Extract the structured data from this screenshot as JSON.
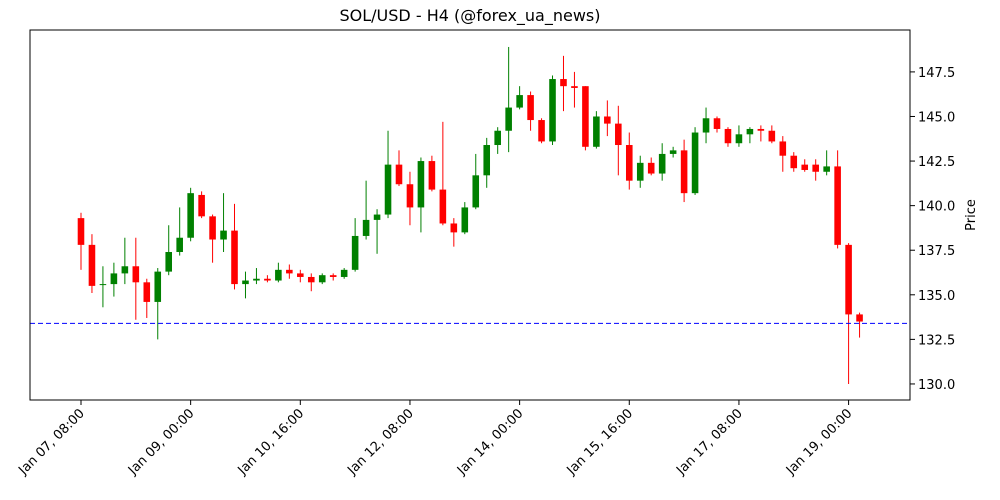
{
  "chart_data": {
    "type": "candlestick",
    "title": "SOL/USD - H4 (@forex_ua_news)",
    "y_label": "Price",
    "x": [
      "Jan 07, 08:00",
      "Jan 07, 12:00",
      "Jan 07, 16:00",
      "Jan 07, 20:00",
      "Jan 08, 00:00",
      "Jan 08, 04:00",
      "Jan 08, 08:00",
      "Jan 08, 12:00",
      "Jan 08, 16:00",
      "Jan 08, 20:00",
      "Jan 09, 00:00",
      "Jan 09, 04:00",
      "Jan 09, 08:00",
      "Jan 09, 12:00",
      "Jan 09, 16:00",
      "Jan 09, 20:00",
      "Jan 10, 00:00",
      "Jan 10, 04:00",
      "Jan 10, 08:00",
      "Jan 10, 12:00",
      "Jan 10, 16:00",
      "Jan 10, 20:00",
      "Jan 11, 00:00",
      "Jan 11, 04:00",
      "Jan 11, 08:00",
      "Jan 11, 12:00",
      "Jan 11, 16:00",
      "Jan 11, 20:00",
      "Jan 12, 00:00",
      "Jan 12, 04:00",
      "Jan 12, 08:00",
      "Jan 12, 12:00",
      "Jan 12, 16:00",
      "Jan 12, 20:00",
      "Jan 13, 00:00",
      "Jan 13, 04:00",
      "Jan 13, 08:00",
      "Jan 13, 12:00",
      "Jan 13, 16:00",
      "Jan 13, 20:00",
      "Jan 14, 00:00",
      "Jan 14, 04:00",
      "Jan 14, 08:00",
      "Jan 14, 12:00",
      "Jan 14, 16:00",
      "Jan 14, 20:00",
      "Jan 15, 00:00",
      "Jan 15, 04:00",
      "Jan 15, 08:00",
      "Jan 15, 12:00",
      "Jan 15, 16:00",
      "Jan 15, 20:00",
      "Jan 16, 00:00",
      "Jan 16, 04:00",
      "Jan 16, 08:00",
      "Jan 16, 12:00",
      "Jan 16, 16:00",
      "Jan 16, 20:00",
      "Jan 17, 00:00",
      "Jan 17, 04:00",
      "Jan 17, 08:00",
      "Jan 17, 12:00",
      "Jan 17, 16:00",
      "Jan 17, 20:00",
      "Jan 18, 00:00",
      "Jan 18, 04:00",
      "Jan 18, 08:00",
      "Jan 18, 12:00",
      "Jan 18, 16:00",
      "Jan 18, 20:00",
      "Jan 19, 00:00",
      "Jan 19, 04:00"
    ],
    "open": [
      139.3,
      137.8,
      135.6,
      135.6,
      136.2,
      136.6,
      135.7,
      134.6,
      136.3,
      137.4,
      138.2,
      140.6,
      139.4,
      138.1,
      138.6,
      135.6,
      135.8,
      135.9,
      135.8,
      136.4,
      136.2,
      136.0,
      135.7,
      136.1,
      136.0,
      136.4,
      138.3,
      139.2,
      139.5,
      142.3,
      141.2,
      139.9,
      142.5,
      140.9,
      139.0,
      138.5,
      139.9,
      141.7,
      143.4,
      144.2,
      145.5,
      146.2,
      144.8,
      143.6,
      147.1,
      146.7,
      146.7,
      143.3,
      145.0,
      144.6,
      143.4,
      141.4,
      142.4,
      141.8,
      142.9,
      143.1,
      140.7,
      144.1,
      144.9,
      144.3,
      143.5,
      144.0,
      144.3,
      144.2,
      143.6,
      142.8,
      142.3,
      142.3,
      141.9,
      142.2,
      137.8,
      133.9
    ],
    "high": [
      139.6,
      138.4,
      136.6,
      136.8,
      138.2,
      138.2,
      135.9,
      136.5,
      138.9,
      139.9,
      141.0,
      140.8,
      139.5,
      140.7,
      140.1,
      136.3,
      136.5,
      136.1,
      136.8,
      136.7,
      136.4,
      136.2,
      136.2,
      136.2,
      136.5,
      139.3,
      141.4,
      139.8,
      144.2,
      143.1,
      141.9,
      142.7,
      142.8,
      144.7,
      139.3,
      140.2,
      142.9,
      143.8,
      144.4,
      148.9,
      146.7,
      146.4,
      144.9,
      147.3,
      148.4,
      147.5,
      146.7,
      145.3,
      145.9,
      145.6,
      144.1,
      142.8,
      142.7,
      143.5,
      143.3,
      143.7,
      144.4,
      145.5,
      145.0,
      144.4,
      144.5,
      144.4,
      144.5,
      144.5,
      143.9,
      143.0,
      142.6,
      142.6,
      143.1,
      143.1,
      137.9,
      134.0
    ],
    "low": [
      136.4,
      135.1,
      134.3,
      134.9,
      135.6,
      133.6,
      133.7,
      132.5,
      136.1,
      137.2,
      138.0,
      139.3,
      136.8,
      137.4,
      135.3,
      134.8,
      135.6,
      135.7,
      135.7,
      135.9,
      135.7,
      135.2,
      135.6,
      135.8,
      135.9,
      136.3,
      138.1,
      137.3,
      139.3,
      141.1,
      138.9,
      138.5,
      140.8,
      138.9,
      137.7,
      138.4,
      139.8,
      141.0,
      142.9,
      143.0,
      145.4,
      144.2,
      143.5,
      143.4,
      145.3,
      145.5,
      143.1,
      143.2,
      143.9,
      141.7,
      140.9,
      141.0,
      141.7,
      141.4,
      142.7,
      140.2,
      140.6,
      143.5,
      144.1,
      143.3,
      143.3,
      143.5,
      143.6,
      143.5,
      141.9,
      141.9,
      141.9,
      141.4,
      141.7,
      137.6,
      130.0,
      132.6
    ],
    "close": [
      137.8,
      135.5,
      135.6,
      136.2,
      136.6,
      135.7,
      134.6,
      136.3,
      137.4,
      138.2,
      140.7,
      139.4,
      138.1,
      138.6,
      135.6,
      135.8,
      135.9,
      135.8,
      136.4,
      136.2,
      136.0,
      135.7,
      136.1,
      136.0,
      136.4,
      138.3,
      139.2,
      139.5,
      142.3,
      141.2,
      139.9,
      142.5,
      140.9,
      139.0,
      138.5,
      139.9,
      141.7,
      143.4,
      144.2,
      145.5,
      146.2,
      144.8,
      143.6,
      147.1,
      146.7,
      146.6,
      143.3,
      145.0,
      144.6,
      143.4,
      141.4,
      142.4,
      141.8,
      142.9,
      143.1,
      140.7,
      144.1,
      144.9,
      144.3,
      143.5,
      144.0,
      144.3,
      144.2,
      143.6,
      142.8,
      142.1,
      142.0,
      141.9,
      142.2,
      137.8,
      133.9,
      133.5
    ],
    "up_color": "#008000",
    "down_color": "#ff0000",
    "hline": 133.4,
    "hline_color": "#0000ff",
    "xlim": [
      -4.65,
      75.6
    ],
    "xticks": [
      {
        "value": 0,
        "label": "Jan 07, 08:00"
      },
      {
        "value": 10,
        "label": "Jan 09, 00:00"
      },
      {
        "value": 20,
        "label": "Jan 10, 16:00"
      },
      {
        "value": 30,
        "label": "Jan 12, 08:00"
      },
      {
        "value": 40,
        "label": "Jan 14, 00:00"
      },
      {
        "value": 50,
        "label": "Jan 15, 16:00"
      },
      {
        "value": 60,
        "label": "Jan 17, 08:00"
      },
      {
        "value": 70,
        "label": "Jan 19, 00:00"
      }
    ],
    "ylim": [
      129.1,
      149.85
    ],
    "yticks": [
      {
        "value": 130,
        "label": "130.0"
      },
      {
        "value": 132.5,
        "label": "132.5"
      },
      {
        "value": 135,
        "label": "135.0"
      },
      {
        "value": 137.5,
        "label": "137.5"
      },
      {
        "value": 140,
        "label": "140.0"
      },
      {
        "value": 142.5,
        "label": "142.5"
      },
      {
        "value": 145,
        "label": "145.0"
      },
      {
        "value": 147.5,
        "label": "147.5"
      }
    ]
  }
}
